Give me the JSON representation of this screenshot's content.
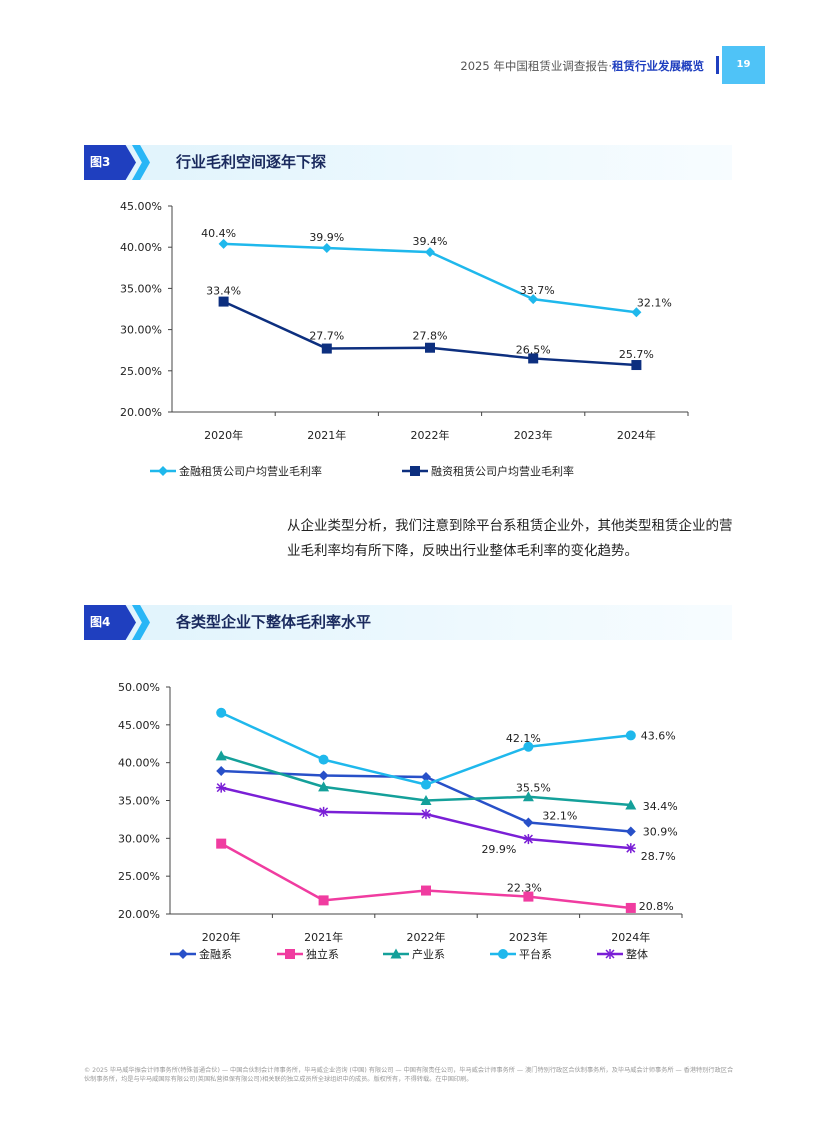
{
  "header": {
    "title_prefix": "2025 年中国租赁业调查报告·",
    "title_highlight": "租赁行业发展概览",
    "page_number": "19"
  },
  "figures": [
    {
      "badge": "图3",
      "title": "行业毛利空间逐年下探"
    },
    {
      "badge": "图4",
      "title": "各类型企业下整体毛利率水平"
    }
  ],
  "paragraph": "从企业类型分析，我们注意到除平台系租赁企业外，其他类型租赁企业的营业毛利率均有所下降，反映出行业整体毛利率的变化趋势。",
  "footer": "© 2025 毕马威华振会计师事务所(特殊普通合伙) — 中国合伙制会计师事务所，毕马威企业咨询 (中国) 有限公司 — 中国有限责任公司，毕马威会计师事务所 — 澳门特别行政区合伙制事务所，及毕马威会计师事务所 — 香港特别行政区合伙制事务所，均是与毕马威国际有限公司(英国私营担保有限公司)相关联的独立成员所全球组织中的成员。版权所有，不得转载。在中国印刷。",
  "chart_data": [
    {
      "type": "line",
      "categories": [
        "2020年",
        "2021年",
        "2022年",
        "2023年",
        "2024年"
      ],
      "yticks": [
        "20.00%",
        "25.00%",
        "30.00%",
        "35.00%",
        "40.00%",
        "45.00%"
      ],
      "ylim": [
        20,
        45
      ],
      "grid": false,
      "legend_position": "bottom",
      "series": [
        {
          "name": "金融租赁公司户均营业毛利率",
          "values": [
            40.4,
            39.9,
            39.4,
            33.7,
            32.1
          ],
          "labels": [
            "40.4%",
            "39.9%",
            "39.4%",
            "33.7%",
            "32.1%"
          ],
          "color": "#1fb8ec",
          "marker": "diamond"
        },
        {
          "name": "融资租赁公司户均营业毛利率",
          "values": [
            33.4,
            27.7,
            27.8,
            26.5,
            25.7
          ],
          "labels": [
            "33.4%",
            "27.7%",
            "27.8%",
            "26.5%",
            "25.7%"
          ],
          "color": "#0d2f7f",
          "marker": "square"
        }
      ]
    },
    {
      "type": "line",
      "categories": [
        "2020年",
        "2021年",
        "2022年",
        "2023年",
        "2024年"
      ],
      "yticks": [
        "20.00%",
        "25.00%",
        "30.00%",
        "35.00%",
        "40.00%",
        "45.00%",
        "50.00%"
      ],
      "ylim": [
        20,
        50
      ],
      "grid": false,
      "legend_position": "bottom",
      "series": [
        {
          "name": "金融系",
          "values": [
            38.9,
            38.3,
            38.1,
            32.1,
            30.9
          ],
          "labels": [
            "",
            "",
            "",
            "32.1%",
            "30.9%"
          ],
          "color": "#2850c8",
          "marker": "diamond"
        },
        {
          "name": "独立系",
          "values": [
            29.3,
            21.8,
            23.1,
            22.3,
            20.8
          ],
          "labels": [
            "",
            "",
            "",
            "22.3%",
            "20.8%"
          ],
          "color": "#f03ca0",
          "marker": "square"
        },
        {
          "name": "产业系",
          "values": [
            40.9,
            36.8,
            35.0,
            35.5,
            34.4
          ],
          "labels": [
            "",
            "",
            "",
            "35.5%",
            "34.4%"
          ],
          "color": "#14a09a",
          "marker": "triangle"
        },
        {
          "name": "平台系",
          "values": [
            46.6,
            40.4,
            37.1,
            42.1,
            43.6
          ],
          "labels": [
            "",
            "",
            "",
            "42.1%",
            "43.6%"
          ],
          "color": "#1fb8ec",
          "marker": "circle"
        },
        {
          "name": "整体",
          "values": [
            36.7,
            33.5,
            33.2,
            29.9,
            28.7
          ],
          "labels": [
            "",
            "",
            "",
            "29.9%",
            "28.7%"
          ],
          "color": "#7a1fd6",
          "marker": "star"
        }
      ]
    }
  ]
}
